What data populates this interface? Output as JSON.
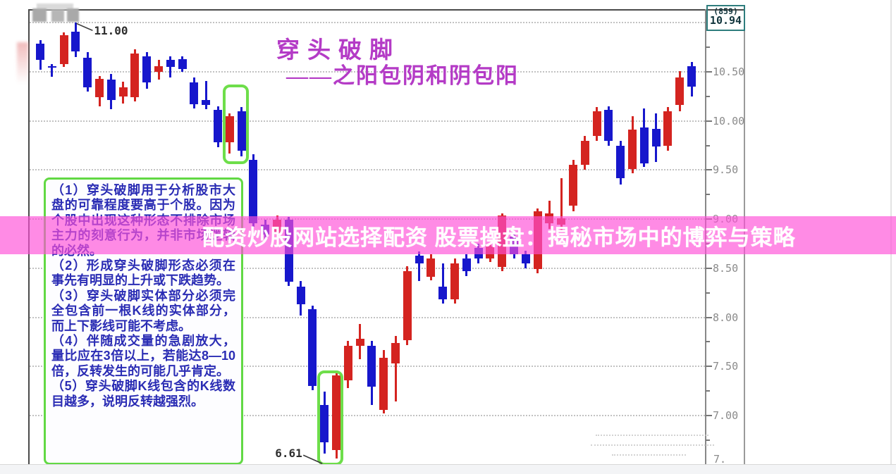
{
  "title": {
    "line1": "穿头破脚",
    "line2": "——之阳包阴和阴包阳",
    "color": "#b43bc6"
  },
  "banner": {
    "text": "配资炒股网站选择配资 股票操盘：揭秘市场中的博弈与策略",
    "bg_color": "#ff4fd8",
    "text_color": "#ffffff"
  },
  "notes_box": {
    "border_color": "#62d944",
    "text_color": "#2a2cb4",
    "items": [
      "（1）穿头破脚用于分析股市大盘的可靠程度要高于个股。因为个股中出现这种形态不排除市场主力的刻意行为，并非市场逻辑的必然。",
      "（2）形成穿头破脚形态必须在事先有明显的上升或下跌趋势。",
      "（3）穿头破脚实体部分必须完全包含前一根K线的实体部分，而上下影线可能不考虑。",
      "（4）伴随成交量的急剧放大，量比应在3倍以上，若能达8—10倍，反转发生的可能几乎肯定。",
      "（5）穿头破脚K线包含的K线数目越多，说明反转越强烈。"
    ]
  },
  "quote_box": {
    "line1": "(859)",
    "line2": "10.94",
    "bg_color": "#8df1e9"
  },
  "axis": {
    "partial_bottom_label": "7.",
    "label_color": "#8b8b8b"
  },
  "chart_data": {
    "type": "candlestick",
    "title": "穿头破脚 ——之阳包阴和阴包阳",
    "ylabel": "price",
    "ylim": [
      6.5,
      11.2
    ],
    "grid": true,
    "y_gridlines": [
      11.0,
      10.5,
      10.0,
      9.5,
      9.0,
      8.5,
      8.0,
      7.5,
      7.0
    ],
    "y_tick_labels": [
      "10.50",
      "10.00",
      "9.50",
      "9.00",
      "8.50",
      "8.00",
      "7.50",
      "7.00"
    ],
    "up_color": "#d42420",
    "down_color": "#1717cc",
    "annotations": [
      {
        "label": "11.00",
        "candle_index": 3,
        "at": "high",
        "value": 11.0
      },
      {
        "label": "6.61",
        "candle_index": 24,
        "at": "low",
        "value": 6.61
      }
    ],
    "engulfing_highlights": [
      {
        "from": 16,
        "to": 17,
        "p_top": 10.37,
        "p_bottom": 9.56
      },
      {
        "from": 24,
        "to": 25,
        "p_top": 7.46,
        "p_bottom": 6.49
      }
    ],
    "candles_format": [
      "open",
      "high",
      "low",
      "close"
    ],
    "candles": [
      [
        10.79,
        10.82,
        10.52,
        10.62
      ],
      [
        10.56,
        10.58,
        10.45,
        10.55
      ],
      [
        10.58,
        10.9,
        10.55,
        10.87
      ],
      [
        10.91,
        11.0,
        10.65,
        10.71
      ],
      [
        10.64,
        10.7,
        10.3,
        10.34
      ],
      [
        10.24,
        10.46,
        10.15,
        10.43
      ],
      [
        10.42,
        10.48,
        10.12,
        10.21
      ],
      [
        10.25,
        10.4,
        10.18,
        10.34
      ],
      [
        10.24,
        10.73,
        10.2,
        10.69
      ],
      [
        10.66,
        10.7,
        10.33,
        10.39
      ],
      [
        10.5,
        10.62,
        10.42,
        10.56
      ],
      [
        10.62,
        10.66,
        10.44,
        10.55
      ],
      [
        10.63,
        10.66,
        10.5,
        10.53
      ],
      [
        10.39,
        10.44,
        10.13,
        10.17
      ],
      [
        10.21,
        10.41,
        10.12,
        10.16
      ],
      [
        10.11,
        10.15,
        9.73,
        9.78
      ],
      [
        9.78,
        10.08,
        9.67,
        10.05
      ],
      [
        10.1,
        10.14,
        9.64,
        9.7
      ],
      [
        9.6,
        9.66,
        8.92,
        8.96
      ],
      [
        8.94,
        8.99,
        8.78,
        8.84
      ],
      [
        8.84,
        9.04,
        8.76,
        8.99
      ],
      [
        8.99,
        9.02,
        8.32,
        8.36
      ],
      [
        8.31,
        8.37,
        8.02,
        8.13
      ],
      [
        8.08,
        8.12,
        7.26,
        7.3
      ],
      [
        7.11,
        7.24,
        6.61,
        6.73
      ],
      [
        6.65,
        7.44,
        6.56,
        7.41
      ],
      [
        7.36,
        7.76,
        7.28,
        7.71
      ],
      [
        7.71,
        7.93,
        7.57,
        7.78
      ],
      [
        7.71,
        7.76,
        7.11,
        7.29
      ],
      [
        7.06,
        7.67,
        7.02,
        7.59
      ],
      [
        7.53,
        7.81,
        7.14,
        7.74
      ],
      [
        7.77,
        8.52,
        7.72,
        8.47
      ],
      [
        8.63,
        8.67,
        8.37,
        8.55
      ],
      [
        8.41,
        8.64,
        8.38,
        8.6
      ],
      [
        8.31,
        8.55,
        8.14,
        8.18
      ],
      [
        8.18,
        8.6,
        8.14,
        8.55
      ],
      [
        8.6,
        8.64,
        8.42,
        8.47
      ],
      [
        8.71,
        8.75,
        8.55,
        8.6
      ],
      [
        8.6,
        8.76,
        8.56,
        8.72
      ],
      [
        8.51,
        9.06,
        8.47,
        9.04
      ],
      [
        8.82,
        8.86,
        8.6,
        8.64
      ],
      [
        8.64,
        8.68,
        8.5,
        8.55
      ],
      [
        8.49,
        9.11,
        8.45,
        9.08
      ],
      [
        8.96,
        9.19,
        8.9,
        9.06
      ],
      [
        8.94,
        9.42,
        8.88,
        9.01
      ],
      [
        9.14,
        9.6,
        9.08,
        9.55
      ],
      [
        9.55,
        9.85,
        9.5,
        9.8
      ],
      [
        9.85,
        10.14,
        9.8,
        10.1
      ],
      [
        10.11,
        10.15,
        9.75,
        9.8
      ],
      [
        9.75,
        9.8,
        9.35,
        9.42
      ],
      [
        9.51,
        10.05,
        9.47,
        9.91
      ],
      [
        9.93,
        10.13,
        9.53,
        9.57
      ],
      [
        9.92,
        10.08,
        9.58,
        9.74
      ],
      [
        9.75,
        10.14,
        9.7,
        10.1
      ],
      [
        10.16,
        10.51,
        10.1,
        10.44
      ],
      [
        10.56,
        10.6,
        10.25,
        10.35
      ]
    ]
  }
}
